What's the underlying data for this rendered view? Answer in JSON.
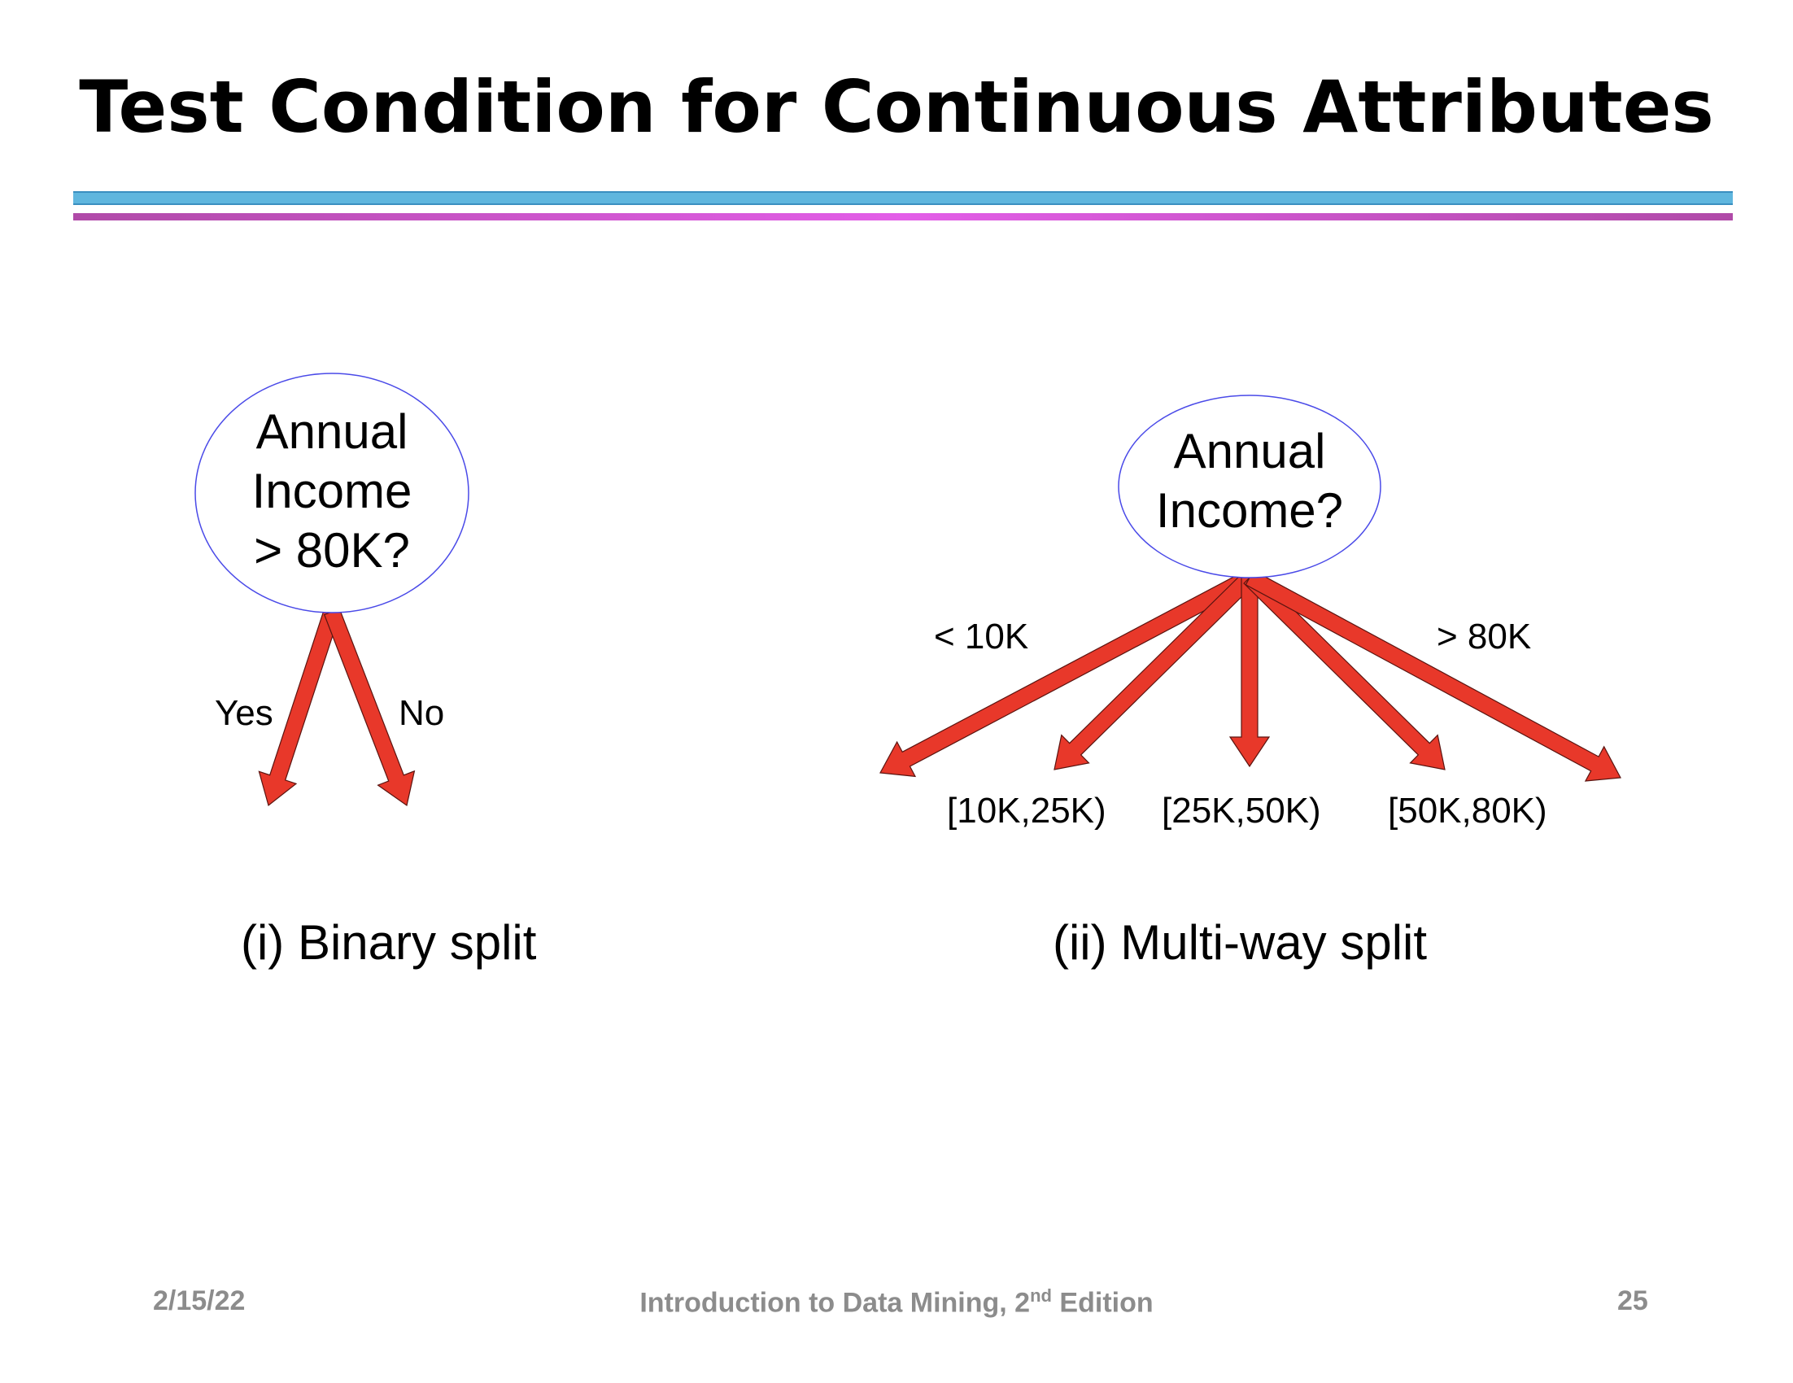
{
  "slide": {
    "title": "Test Condition for Continuous Attributes"
  },
  "binary_split": {
    "node_lines": [
      "Annual",
      "Income",
      "> 80K?"
    ],
    "branches": [
      {
        "label": "Yes"
      },
      {
        "label": "No"
      }
    ],
    "caption": "(i) Binary split"
  },
  "multiway_split": {
    "node_lines": [
      "Annual",
      "Income?"
    ],
    "branches": [
      {
        "label": "< 10K"
      },
      {
        "label": "[10K,25K)"
      },
      {
        "label": "[25K,50K)"
      },
      {
        "label": "[50K,80K)"
      },
      {
        "label": "> 80K"
      }
    ],
    "caption": "(ii) Multi-way split"
  },
  "footer": {
    "date": "2/15/22",
    "book_title": "Introduction to Data Mining, 2",
    "book_sup": "nd",
    "book_suffix": " Edition",
    "page_number": "25"
  },
  "colors": {
    "arrow_fill": "#e8382a",
    "node_outline": "#4a4ae8",
    "title_rule": "#5fb6de",
    "accent_rule": "#e35ee8"
  }
}
